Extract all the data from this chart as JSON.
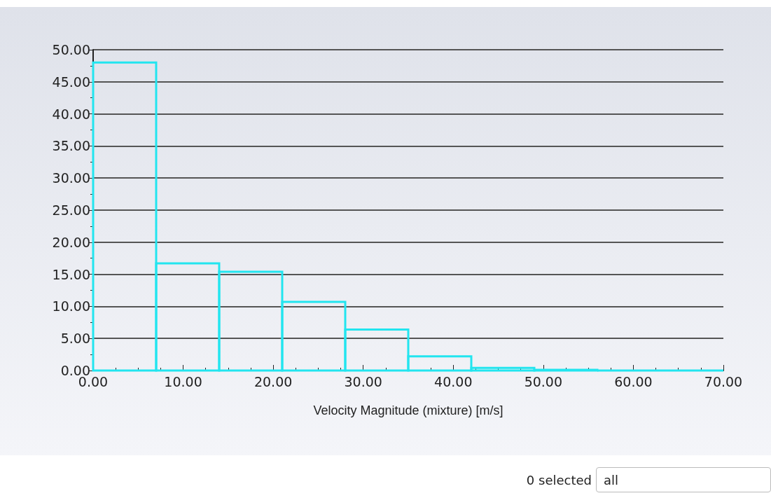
{
  "chart_data": {
    "type": "histogram",
    "xlabel": "Velocity Magnitude (mixture) [m/s]",
    "bins": [
      0,
      7,
      14,
      21,
      28,
      35,
      42,
      49,
      56,
      63,
      70
    ],
    "values": [
      48,
      16.7,
      15.4,
      10.7,
      6.4,
      2.2,
      0.4,
      0.1,
      0,
      0
    ],
    "color": "#22e5ef",
    "xlim": [
      0,
      70
    ],
    "xticks": [
      {
        "value": 0,
        "label": "0.00"
      },
      {
        "value": 10,
        "label": "10.00"
      },
      {
        "value": 20,
        "label": "20.00"
      },
      {
        "value": 30,
        "label": "30.00"
      },
      {
        "value": 40,
        "label": "40.00"
      },
      {
        "value": 50,
        "label": "50.00"
      },
      {
        "value": 60,
        "label": "60.00"
      },
      {
        "value": 70,
        "label": "70.00"
      }
    ],
    "ylim": [
      0,
      50
    ],
    "yticks": [
      {
        "value": 0,
        "label": "0.00"
      },
      {
        "value": 5,
        "label": "5.00"
      },
      {
        "value": 10,
        "label": "10.00"
      },
      {
        "value": 15,
        "label": "15.00"
      },
      {
        "value": 20,
        "label": "20.00"
      },
      {
        "value": 25,
        "label": "25.00"
      },
      {
        "value": 30,
        "label": "30.00"
      },
      {
        "value": 35,
        "label": "35.00"
      },
      {
        "value": 40,
        "label": "40.00"
      },
      {
        "value": 45,
        "label": "45.00"
      },
      {
        "value": 50,
        "label": "50.00"
      }
    ],
    "grid": "y",
    "annotations": [
      "0 selected",
      "all"
    ]
  }
}
